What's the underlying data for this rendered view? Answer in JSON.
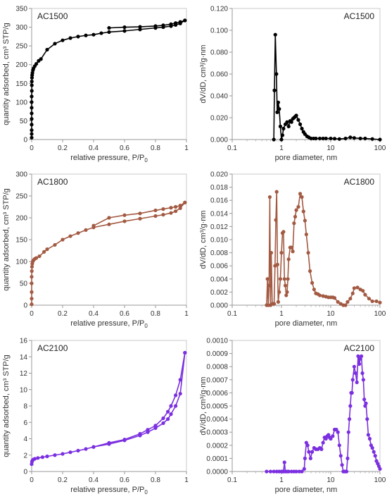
{
  "chart_data": [
    {
      "type": "line",
      "title": "AC1500",
      "xlabel": "relative pressure, P/P",
      "xlabel_sub": "0",
      "ylabel": "quantity adsorbed, cm³ STP/g",
      "xlim": [
        0,
        1
      ],
      "ylim": [
        0,
        350
      ],
      "xticks": [
        0,
        0.2,
        0.4,
        0.6,
        0.8,
        1
      ],
      "yticks": [
        0,
        50,
        100,
        150,
        200,
        250,
        300,
        350
      ],
      "xtick_labels": [
        "0",
        "0.2",
        "0.4",
        "0.6",
        "0.8",
        "1"
      ],
      "ytick_labels": [
        "0",
        "50",
        "100",
        "150",
        "200",
        "250",
        "300",
        "350"
      ],
      "color": "#000000",
      "series": [
        {
          "x": [
            0.0,
            0.0,
            0.0,
            0.0,
            0.0,
            0.0,
            0.0,
            0.0,
            0.0,
            0.001,
            0.001,
            0.001,
            0.002,
            0.003,
            0.005,
            0.008,
            0.012,
            0.02,
            0.03,
            0.045,
            0.06,
            0.1,
            0.15,
            0.2,
            0.25,
            0.3,
            0.35,
            0.4,
            0.45,
            0.5,
            0.6,
            0.7,
            0.8,
            0.85,
            0.9,
            0.93,
            0.96,
            0.99
          ],
          "y": [
            5,
            15,
            25,
            40,
            55,
            70,
            85,
            100,
            115,
            130,
            145,
            155,
            165,
            172,
            178,
            185,
            190,
            196,
            202,
            210,
            215,
            240,
            256,
            265,
            271,
            275,
            278,
            280,
            284,
            287,
            290,
            294,
            298,
            300,
            303,
            306,
            310,
            318
          ]
        },
        {
          "x": [
            0.99,
            0.96,
            0.93,
            0.9,
            0.85,
            0.8,
            0.7,
            0.6,
            0.5
          ],
          "y": [
            318,
            314,
            311,
            308,
            305,
            303,
            301,
            300,
            298
          ]
        }
      ]
    },
    {
      "type": "line",
      "title": "AC1500",
      "xlabel": "pore diameter, nm",
      "ylabel": "dV/dD, cm³/g·nm",
      "xscale": "log",
      "xlim": [
        0.1,
        100
      ],
      "ylim": [
        0,
        0.12
      ],
      "xticks": [
        0.1,
        1,
        10,
        100
      ],
      "yticks": [
        0,
        0.02,
        0.04,
        0.06,
        0.08,
        0.1,
        0.12
      ],
      "xtick_labels": [
        "0.1",
        "1",
        "10",
        "100"
      ],
      "ytick_labels": [
        "0.000",
        "0.020",
        "0.040",
        "0.060",
        "0.080",
        "0.100",
        "0.120"
      ],
      "color": "#000000",
      "series": [
        {
          "x": [
            0.7,
            0.72,
            0.75,
            0.79,
            0.82,
            0.86,
            0.9,
            0.95,
            1.0,
            1.05,
            1.1,
            1.2,
            1.3,
            1.4,
            1.5,
            1.6,
            1.7,
            1.8,
            1.9,
            2.0,
            2.2,
            2.4,
            2.6,
            2.8,
            3.0,
            3.3,
            3.6,
            4.0,
            4.5,
            5,
            6,
            7,
            8,
            10,
            12,
            15,
            20,
            25,
            30,
            40,
            50,
            70,
            100
          ],
          "y": [
            0.0,
            0.045,
            0.096,
            0.06,
            0.025,
            0.034,
            0.028,
            0.012,
            0.0,
            0.004,
            0.01,
            0.014,
            0.016,
            0.012,
            0.017,
            0.016,
            0.019,
            0.02,
            0.021,
            0.022,
            0.018,
            0.014,
            0.01,
            0.007,
            0.005,
            0.003,
            0.002,
            0.001,
            0.001,
            0.001,
            0.001,
            0.001,
            0.001,
            0.001,
            0.0008,
            0.0005,
            0.001,
            0.002,
            0.0015,
            0.001,
            0.001,
            0.0005,
            0.0
          ]
        }
      ]
    },
    {
      "type": "line",
      "title": "AC1800",
      "xlabel": "relative pressure, P/P",
      "xlabel_sub": "0",
      "ylabel": "quantity adsorbed, cm³ STP/g",
      "xlim": [
        0,
        1
      ],
      "ylim": [
        0,
        300
      ],
      "xticks": [
        0,
        0.2,
        0.4,
        0.6,
        0.8,
        1
      ],
      "yticks": [
        0,
        50,
        100,
        150,
        200,
        250,
        300
      ],
      "xtick_labels": [
        "0",
        "0.2",
        "0.4",
        "0.6",
        "0.8",
        "1"
      ],
      "ytick_labels": [
        "0",
        "50",
        "100",
        "150",
        "200",
        "250",
        "300"
      ],
      "color": "#A35A42",
      "series": [
        {
          "x": [
            0.0,
            0.0,
            0.0,
            0.0,
            0.0,
            0.001,
            0.002,
            0.004,
            0.007,
            0.012,
            0.02,
            0.03,
            0.05,
            0.08,
            0.1,
            0.15,
            0.2,
            0.25,
            0.3,
            0.35,
            0.4,
            0.5,
            0.6,
            0.7,
            0.8,
            0.85,
            0.9,
            0.93,
            0.96,
            0.99
          ],
          "y": [
            2,
            15,
            30,
            50,
            65,
            78,
            88,
            95,
            100,
            103,
            106,
            108,
            112,
            122,
            128,
            138,
            150,
            158,
            165,
            172,
            178,
            185,
            192,
            198,
            204,
            207,
            211,
            215,
            222,
            235
          ]
        },
        {
          "x": [
            0.99,
            0.96,
            0.93,
            0.9,
            0.85,
            0.8,
            0.7,
            0.6,
            0.5,
            0.4
          ],
          "y": [
            235,
            228,
            225,
            223,
            220,
            217,
            210,
            206,
            200,
            182
          ]
        }
      ]
    },
    {
      "type": "line",
      "title": "AC1800",
      "xlabel": "pore diameter, nm",
      "ylabel": "dV/dD, cm³/g·nm",
      "xscale": "log",
      "xlim": [
        0.1,
        100
      ],
      "ylim": [
        0,
        0.02
      ],
      "xticks": [
        0.1,
        1,
        10,
        100
      ],
      "yticks": [
        0,
        0.002,
        0.004,
        0.006,
        0.008,
        0.01,
        0.012,
        0.014,
        0.016,
        0.018,
        0.02
      ],
      "xtick_labels": [
        "0.1",
        "1",
        "10",
        "100"
      ],
      "ytick_labels": [
        "0.000",
        "0.002",
        "0.004",
        "0.006",
        "0.008",
        "0.010",
        "0.012",
        "0.014",
        "0.016",
        "0.018",
        "0.020"
      ],
      "color": "#A35A42",
      "series": [
        {
          "x": [
            0.5,
            0.52,
            0.54,
            0.56,
            0.58,
            0.6,
            0.62,
            0.65,
            0.68,
            0.71,
            0.74,
            0.77,
            0.8,
            0.83,
            0.86,
            0.9,
            0.95,
            1.0,
            1.05,
            1.1,
            1.15,
            1.2,
            1.25,
            1.3,
            1.35,
            1.4,
            1.5,
            1.6,
            1.7,
            1.8,
            1.9,
            2.0,
            2.2,
            2.4,
            2.6,
            2.8,
            3.0,
            3.2,
            3.5,
            3.8,
            4.2,
            4.6,
            5.0,
            5.5,
            6,
            7,
            8,
            9,
            10,
            11,
            12,
            14,
            16,
            18,
            20,
            22,
            25,
            28,
            30,
            35,
            40,
            45,
            50,
            60,
            70,
            85,
            100
          ],
          "y": [
            0.0,
            0.004,
            0.0,
            0.003,
            0.0165,
            0.0,
            0.008,
            0.0002,
            0.0002,
            0.0002,
            0.006,
            0.013,
            0.0173,
            0.0062,
            0.0005,
            0.002,
            0.004,
            0.008,
            0.011,
            0.0112,
            0.004,
            0.003,
            0.0015,
            0.002,
            0.004,
            0.007,
            0.0088,
            0.0088,
            0.0082,
            0.0125,
            0.0135,
            0.0145,
            0.015,
            0.017,
            0.0165,
            0.0143,
            0.0129,
            0.0108,
            0.008,
            0.0052,
            0.0034,
            0.0024,
            0.0018,
            0.0017,
            0.0015,
            0.0014,
            0.0013,
            0.0012,
            0.0012,
            0.0012,
            0.0011,
            0.0005,
            0.0002,
            0.0,
            0.0,
            0.0005,
            0.001,
            0.0018,
            0.0026,
            0.0027,
            0.0024,
            0.0022,
            0.0016,
            0.001,
            0.0006,
            0.0006,
            0.0004
          ]
        }
      ]
    },
    {
      "type": "line",
      "title": "AC2100",
      "xlabel": "relative pressure, P/P",
      "xlabel_sub": "0",
      "ylabel": "quantity adsorbed, cm³ STP/g",
      "xlim": [
        0,
        1
      ],
      "ylim": [
        0,
        16
      ],
      "xticks": [
        0,
        0.2,
        0.4,
        0.6,
        0.8,
        1
      ],
      "yticks": [
        0,
        2,
        4,
        6,
        8,
        10,
        12,
        14,
        16
      ],
      "xtick_labels": [
        "0",
        "0.2",
        "0.4",
        "0.6",
        "0.8",
        "1"
      ],
      "ytick_labels": [
        "0",
        "2",
        "4",
        "6",
        "8",
        "10",
        "12",
        "14",
        "16"
      ],
      "color": "#7B2FE0",
      "series": [
        {
          "x": [
            0.0,
            0.002,
            0.005,
            0.01,
            0.02,
            0.04,
            0.07,
            0.1,
            0.15,
            0.2,
            0.25,
            0.3,
            0.35,
            0.4,
            0.5,
            0.6,
            0.7,
            0.75,
            0.8,
            0.85,
            0.88,
            0.9,
            0.93,
            0.96,
            0.99
          ],
          "y": [
            0.9,
            1.2,
            1.35,
            1.45,
            1.55,
            1.65,
            1.75,
            1.85,
            2.0,
            2.15,
            2.35,
            2.55,
            2.75,
            3.0,
            3.35,
            3.8,
            4.4,
            4.8,
            5.3,
            5.9,
            6.4,
            7.0,
            8.0,
            9.5,
            14.5
          ]
        },
        {
          "x": [
            0.99,
            0.96,
            0.93,
            0.9,
            0.88,
            0.85,
            0.8,
            0.75,
            0.7,
            0.6,
            0.5,
            0.4
          ],
          "y": [
            14.5,
            11.2,
            9.3,
            8.0,
            7.3,
            6.5,
            5.6,
            5.1,
            4.6,
            3.9,
            3.5,
            3.0
          ]
        }
      ]
    },
    {
      "type": "line",
      "title": "AC2100",
      "xlabel": "pore diameter, nm",
      "ylabel": "dV/dD, cm³/g·nm",
      "xscale": "log",
      "xlim": [
        0.1,
        100
      ],
      "ylim": [
        0,
        0.001
      ],
      "xticks": [
        0.1,
        1,
        10,
        100
      ],
      "yticks": [
        0,
        0.0001,
        0.0002,
        0.0003,
        0.0004,
        0.0005,
        0.0006,
        0.0007,
        0.0008,
        0.0009,
        0.001
      ],
      "xtick_labels": [
        "0.1",
        "1",
        "10",
        "100"
      ],
      "ytick_labels": [
        "0.0000",
        "0.0001",
        "0.0002",
        "0.0003",
        "0.0004",
        "0.0005",
        "0.0006",
        "0.0007",
        "0.0008",
        "0.0009",
        "0.0010"
      ],
      "color": "#7B2FE0",
      "series": [
        {
          "x": [
            0.5,
            0.6,
            0.7,
            0.8,
            0.9,
            1.0,
            1.05,
            1.1,
            1.15,
            1.2,
            1.3,
            1.4,
            1.6,
            1.8,
            2.0,
            2.3,
            2.6,
            2.9,
            3.0,
            3.2,
            3.4,
            3.6,
            3.9,
            4.2,
            4.6,
            5.0,
            5.5,
            6.0,
            6.5,
            7.0,
            7.5,
            8.0,
            8.5,
            9.0,
            9.5,
            10,
            11,
            12,
            13,
            14,
            15,
            16,
            17,
            18,
            19,
            20,
            21,
            22,
            23,
            24,
            25,
            26,
            27,
            28,
            30,
            32,
            34,
            36,
            38,
            40,
            42,
            44,
            46,
            48,
            50,
            52,
            55,
            58,
            62,
            66,
            70,
            75,
            80,
            85,
            90,
            95,
            100
          ],
          "y": [
            0.0,
            0.0,
            0.0,
            0.0,
            0.0,
            0.0,
            0.0,
            0.0,
            7e-05,
            0.0,
            0.0,
            0.0,
            0.0,
            0.0,
            0.0,
            0.0,
            0.0,
            2e-05,
            0.0001,
            0.00022,
            0.0002,
            0.00015,
            0.0001,
            0.00015,
            0.00018,
            0.00017,
            0.00017,
            0.00018,
            0.00017,
            0.00022,
            0.00026,
            0.00025,
            0.00027,
            0.00028,
            0.00026,
            0.00025,
            0.00027,
            0.00032,
            0.00032,
            0.0003,
            0.0002,
            0.00012,
            5e-05,
            0.0,
            0.0,
            0.0,
            0.0,
            0.0001,
            0.0003,
            0.0004,
            0.0005,
            0.0006,
            0.0006,
            0.0007,
            0.0008,
            0.00075,
            0.00068,
            0.00088,
            0.00082,
            0.00086,
            0.00088,
            0.00075,
            0.0007,
            0.00055,
            0.0005,
            0.00052,
            0.0004,
            0.00028,
            0.00025,
            0.0002,
            0.00018,
            0.00015,
            0.00012,
            8e-05,
            6e-05,
            4e-05,
            2e-05
          ]
        }
      ]
    }
  ]
}
